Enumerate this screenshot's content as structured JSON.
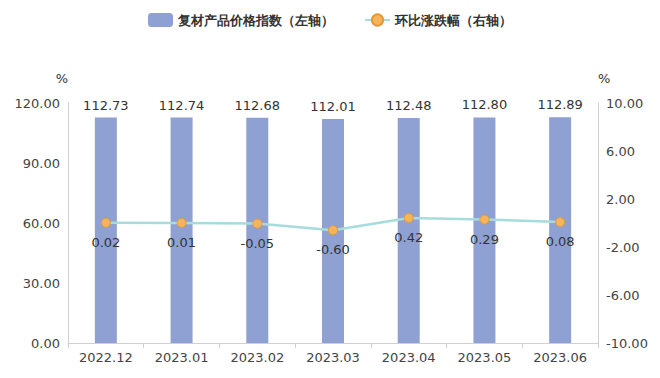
{
  "chart_data": {
    "type": "bar",
    "categories": [
      "2022.12",
      "2023.01",
      "2023.02",
      "2023.03",
      "2023.04",
      "2023.05",
      "2023.06"
    ],
    "series": [
      {
        "name": "复材产品价格指数（左轴）",
        "type": "bar",
        "color": "#8fa0d2",
        "values": [
          112.73,
          112.74,
          112.68,
          112.01,
          112.48,
          112.8,
          112.89
        ],
        "value_labels": [
          "112.73",
          "112.74",
          "112.68",
          "112.01",
          "112.48",
          "112.80",
          "112.89"
        ]
      },
      {
        "name": "环比涨跌幅（右轴）",
        "type": "line",
        "axis": "y2",
        "color": "#a6dcdc",
        "marker": "circle",
        "values": [
          0.02,
          0.01,
          -0.05,
          -0.6,
          0.42,
          0.29,
          0.08
        ],
        "value_labels": [
          "0.02",
          "0.01",
          "-0.05",
          "-0.60",
          "0.42",
          "0.29",
          "0.08"
        ]
      }
    ],
    "ylabel": "%",
    "y2label": "%",
    "ylim": [
      0,
      120
    ],
    "yticks": [
      {
        "value": 0,
        "label": "0.00"
      },
      {
        "value": 30,
        "label": "30.00"
      },
      {
        "value": 60,
        "label": "60.00"
      },
      {
        "value": 90,
        "label": "90.00"
      },
      {
        "value": 120,
        "label": "120.00"
      }
    ],
    "y2lim": [
      -10,
      10
    ],
    "y2ticks": [
      {
        "value": -10,
        "label": "-10.00"
      },
      {
        "value": -6,
        "label": "-6.00"
      },
      {
        "value": -2,
        "label": "-2.00"
      },
      {
        "value": 2,
        "label": "2.00"
      },
      {
        "value": 6,
        "label": "6.00"
      },
      {
        "value": 10,
        "label": "10.00"
      }
    ],
    "grid": false,
    "legend": "top",
    "data_labels": true
  }
}
